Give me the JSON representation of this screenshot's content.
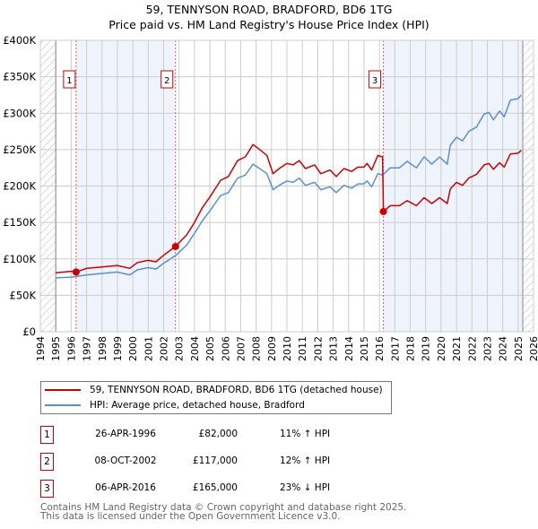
{
  "title": "59, TENNYSON ROAD, BRADFORD, BD6 1TG",
  "subtitle": "Price paid vs. HM Land Registry's House Price Index (HPI)",
  "colors": {
    "property": "#cc0000",
    "hpi": "#5b8fd4",
    "shade": "#eef3fc"
  },
  "chart_data": {
    "type": "line",
    "title": "59, TENNYSON ROAD, BRADFORD, BD6 1TG — Price paid vs. HM Land Registry's House Price Index (HPI)",
    "xlim": [
      1994,
      2026
    ],
    "ylim": [
      0,
      400000
    ],
    "x_ticks": [
      "1994",
      "1995",
      "1996",
      "1997",
      "1998",
      "1999",
      "2000",
      "2001",
      "2002",
      "2003",
      "2004",
      "2005",
      "2006",
      "2007",
      "2008",
      "2009",
      "2010",
      "2011",
      "2012",
      "2013",
      "2014",
      "2015",
      "2016",
      "2017",
      "2018",
      "2019",
      "2020",
      "2021",
      "2022",
      "2023",
      "2024",
      "2025",
      "2026"
    ],
    "y_ticks": [
      {
        "v": 0,
        "label": "£0"
      },
      {
        "v": 50000,
        "label": "£50K"
      },
      {
        "v": 100000,
        "label": "£100K"
      },
      {
        "v": 150000,
        "label": "£150K"
      },
      {
        "v": 200000,
        "label": "£200K"
      },
      {
        "v": 250000,
        "label": "£250K"
      },
      {
        "v": 300000,
        "label": "£300K"
      },
      {
        "v": 350000,
        "label": "£350K"
      },
      {
        "v": 400000,
        "label": "£400K"
      }
    ],
    "grid": true,
    "data_end": 2025.3,
    "series": [
      {
        "name": "59, TENNYSON ROAD, BRADFORD, BD6 1TG (detached house)",
        "color": "#cc0000",
        "x": [
          1995.0,
          1996.0,
          1996.32,
          1997.0,
          1998.0,
          1999.0,
          1999.8,
          2000.3,
          2001.0,
          2001.5,
          2002.0,
          2002.77,
          2003.5,
          2004.0,
          2004.5,
          2005.0,
          2005.7,
          2006.2,
          2006.8,
          2007.3,
          2007.8,
          2008.3,
          2008.7,
          2009.1,
          2009.5,
          2010.0,
          2010.4,
          2010.8,
          2011.2,
          2011.8,
          2012.2,
          2012.8,
          2013.2,
          2013.7,
          2014.2,
          2014.6,
          2015.0,
          2015.2,
          2015.5,
          2015.9,
          2016.2,
          2016.26,
          2016.7,
          2017.3,
          2017.8,
          2018.4,
          2018.9,
          2019.4,
          2019.9,
          2020.4,
          2020.6,
          2021.0,
          2021.4,
          2021.8,
          2022.3,
          2022.8,
          2023.1,
          2023.4,
          2023.8,
          2024.1,
          2024.5,
          2025.0,
          2025.2
        ],
        "y": [
          81000,
          83000,
          82000,
          87000,
          89000,
          91000,
          87000,
          95000,
          98000,
          96000,
          105000,
          117000,
          133000,
          150000,
          170000,
          185000,
          208000,
          213000,
          235000,
          240000,
          257000,
          249000,
          242000,
          217000,
          224000,
          231000,
          229000,
          235000,
          224000,
          229000,
          217000,
          222000,
          213000,
          224000,
          220000,
          226000,
          226000,
          231000,
          222000,
          242000,
          240000,
          165000,
          173000,
          173000,
          180000,
          173000,
          184000,
          176000,
          184000,
          176000,
          196000,
          205000,
          201000,
          211000,
          216000,
          229000,
          231000,
          223000,
          232000,
          226000,
          244000,
          245000,
          249000
        ]
      },
      {
        "name": "HPI: Average price, detached house, Bradford",
        "color": "#5b8fd4",
        "x": [
          1995.0,
          1996.0,
          1997.0,
          1998.0,
          1999.0,
          1999.8,
          2000.3,
          2001.0,
          2001.5,
          2002.0,
          2002.8,
          2003.5,
          2004.0,
          2004.5,
          2005.0,
          2005.7,
          2006.2,
          2006.8,
          2007.3,
          2007.8,
          2008.3,
          2008.7,
          2009.1,
          2009.5,
          2010.0,
          2010.4,
          2010.8,
          2011.2,
          2011.8,
          2012.2,
          2012.8,
          2013.2,
          2013.7,
          2014.2,
          2014.6,
          2015.0,
          2015.2,
          2015.5,
          2015.9,
          2016.2,
          2016.7,
          2017.3,
          2017.8,
          2018.4,
          2018.9,
          2019.4,
          2019.9,
          2020.4,
          2020.6,
          2021.0,
          2021.4,
          2021.8,
          2022.3,
          2022.8,
          2023.1,
          2023.4,
          2023.8,
          2024.1,
          2024.5,
          2025.0,
          2025.2
        ],
        "y": [
          74000,
          75000,
          78000,
          80000,
          82000,
          78000,
          85000,
          88000,
          86000,
          94000,
          105000,
          119000,
          135000,
          152000,
          166000,
          187000,
          191000,
          211000,
          215000,
          230000,
          223000,
          217000,
          195000,
          201000,
          207000,
          205000,
          211000,
          201000,
          205000,
          195000,
          199000,
          191000,
          201000,
          197000,
          203000,
          203000,
          207000,
          199000,
          217000,
          215000,
          225000,
          225000,
          234000,
          225000,
          240000,
          230000,
          240000,
          230000,
          256000,
          267000,
          262000,
          275000,
          281000,
          299000,
          301000,
          291000,
          303000,
          295000,
          318000,
          320000,
          325000
        ]
      }
    ],
    "sales": [
      {
        "label": "1",
        "x": 1996.32,
        "price": 82000
      },
      {
        "label": "2",
        "x": 2002.77,
        "price": 117000
      },
      {
        "label": "3",
        "x": 2016.26,
        "price": 165000
      }
    ]
  },
  "legend": {
    "property": "59, TENNYSON ROAD, BRADFORD, BD6 1TG (detached house)",
    "hpi": "HPI: Average price, detached house, Bradford"
  },
  "transactions": [
    {
      "num": "1",
      "date": "26-APR-1996",
      "price": "£82,000",
      "hpi": "11% ↑ HPI"
    },
    {
      "num": "2",
      "date": "08-OCT-2002",
      "price": "£117,000",
      "hpi": "12% ↑ HPI"
    },
    {
      "num": "3",
      "date": "06-APR-2016",
      "price": "£165,000",
      "hpi": "23% ↓ HPI"
    }
  ],
  "footer": {
    "line1": "Contains HM Land Registry data © Crown copyright and database right 2025.",
    "line2": "This data is licensed under the Open Government Licence v3.0."
  }
}
